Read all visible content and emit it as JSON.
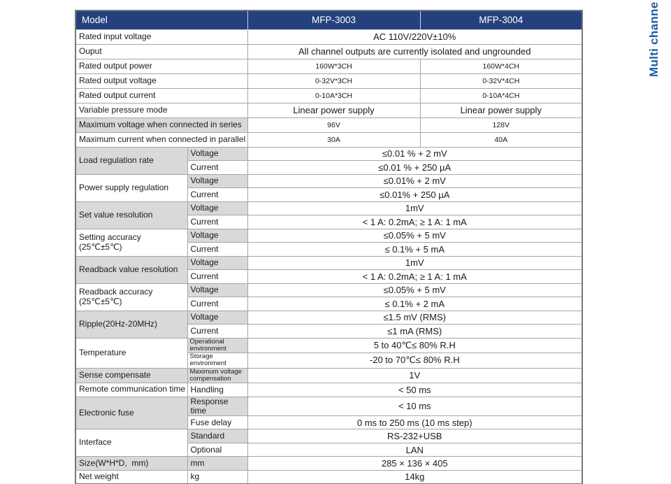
{
  "side_label": "Multi channe",
  "colors": {
    "header_bg": "#24417E",
    "header_text": "#FFFFFF",
    "header_divider": "#CDD3E2",
    "gray_cell": "#D9D9D9",
    "border": "#A6A6A6",
    "outer_border": "#787878",
    "text": "#1A1A1A",
    "side_label": "#1D5BA5"
  },
  "table": {
    "header": {
      "model": "Model",
      "col1": "MFP-3003",
      "col2": "MFP-3004"
    },
    "sections": [
      {
        "label": "Rated input voltage",
        "bg": "white",
        "rows": [
          {
            "sub": null,
            "values": [
              {
                "text": "AC 110V/220V±10%",
                "span": 2,
                "size": "md"
              }
            ]
          }
        ]
      },
      {
        "label": "Ouput",
        "bg": "white",
        "rows": [
          {
            "sub": null,
            "values": [
              {
                "text": "All channel outputs are currently isolated and ungrounded",
                "span": 2,
                "size": "md"
              }
            ]
          }
        ]
      },
      {
        "label": "Rated output power",
        "bg": "white",
        "rows": [
          {
            "sub": null,
            "values": [
              {
                "text": "160W*3CH",
                "span": 1,
                "size": "sm"
              },
              {
                "text": "160W*4CH",
                "span": 1,
                "size": "sm"
              }
            ]
          }
        ]
      },
      {
        "label": "Rated output voltage",
        "bg": "white",
        "rows": [
          {
            "sub": null,
            "values": [
              {
                "text": "0-32V*3CH",
                "span": 1,
                "size": "sm"
              },
              {
                "text": "0-32V*4CH",
                "span": 1,
                "size": "sm"
              }
            ]
          }
        ]
      },
      {
        "label": "Rated output current",
        "bg": "white",
        "rows": [
          {
            "sub": null,
            "values": [
              {
                "text": "0-10A*3CH",
                "span": 1,
                "size": "sm"
              },
              {
                "text": "0-10A*4CH",
                "span": 1,
                "size": "sm"
              }
            ]
          }
        ]
      },
      {
        "label": "Variable pressure mode",
        "bg": "white",
        "rows": [
          {
            "sub": null,
            "values": [
              {
                "text": "Linear power supply",
                "span": 1,
                "size": "md"
              },
              {
                "text": "Linear power supply",
                "span": 1,
                "size": "md"
              }
            ]
          }
        ]
      },
      {
        "label": "Maximum voltage when connected in series",
        "bg": "gray",
        "rows": [
          {
            "sub": null,
            "values": [
              {
                "text": "96V",
                "span": 1,
                "size": "sm"
              },
              {
                "text": "128V",
                "span": 1,
                "size": "sm"
              }
            ]
          }
        ]
      },
      {
        "label": "Maximum current when connected in parallel",
        "bg": "white",
        "rows": [
          {
            "sub": null,
            "values": [
              {
                "text": "30A",
                "span": 1,
                "size": "sm"
              },
              {
                "text": "40A",
                "span": 1,
                "size": "sm"
              }
            ]
          }
        ]
      },
      {
        "label": "Load regulation rate",
        "bg": "gray",
        "rows": [
          {
            "sub": "Voltage",
            "subBg": "gray",
            "values": [
              {
                "text": "≤0.01 % + 2 mV",
                "span": 2,
                "size": "md"
              }
            ]
          },
          {
            "sub": "Current",
            "subBg": "white",
            "values": [
              {
                "text": "≤0.01 % + 250 µA",
                "span": 2,
                "size": "md"
              }
            ]
          }
        ]
      },
      {
        "label": "Power supply regulation",
        "bg": "white",
        "rows": [
          {
            "sub": "Voltage",
            "subBg": "gray",
            "values": [
              {
                "text": "≤0.01% + 2 mV",
                "span": 2,
                "size": "md"
              }
            ]
          },
          {
            "sub": "Current",
            "subBg": "white",
            "values": [
              {
                "text": "≤0.01% + 250 µA",
                "span": 2,
                "size": "md"
              }
            ]
          }
        ]
      },
      {
        "label": "Set value resolution",
        "bg": "gray",
        "rows": [
          {
            "sub": "Voltage",
            "subBg": "gray",
            "values": [
              {
                "text": "1mV",
                "span": 2,
                "size": "md"
              }
            ]
          },
          {
            "sub": "Current",
            "subBg": "white",
            "values": [
              {
                "text": "< 1 A: 0.2mA; ≥ 1 A: 1 mA",
                "span": 2,
                "size": "md"
              }
            ]
          }
        ]
      },
      {
        "label": "Setting accuracy\n(25℃±5℃)",
        "bg": "white",
        "rows": [
          {
            "sub": "Voltage",
            "subBg": "gray",
            "values": [
              {
                "text": "≤0.05% + 5 mV",
                "span": 2,
                "size": "md"
              }
            ]
          },
          {
            "sub": "Current",
            "subBg": "white",
            "values": [
              {
                "text": "≤ 0.1% + 5 mA",
                "span": 2,
                "size": "md"
              }
            ]
          }
        ]
      },
      {
        "label": "Readback value resolution",
        "bg": "gray",
        "rows": [
          {
            "sub": "Voltage",
            "subBg": "gray",
            "values": [
              {
                "text": "1mV",
                "span": 2,
                "size": "md"
              }
            ]
          },
          {
            "sub": "Current",
            "subBg": "white",
            "values": [
              {
                "text": "< 1 A: 0.2mA; ≥ 1 A: 1 mA",
                "span": 2,
                "size": "md"
              }
            ]
          }
        ]
      },
      {
        "label": "Readback accuracy\n(25℃±5℃)",
        "bg": "white",
        "rows": [
          {
            "sub": "Voltage",
            "subBg": "gray",
            "values": [
              {
                "text": "≤0.05% + 5 mV",
                "span": 2,
                "size": "md"
              }
            ]
          },
          {
            "sub": "Current",
            "subBg": "white",
            "values": [
              {
                "text": "≤ 0.1% + 2 mA",
                "span": 2,
                "size": "md"
              }
            ]
          }
        ]
      },
      {
        "label": "Ripple(20Hz-20MHz)",
        "bg": "gray",
        "rows": [
          {
            "sub": "Voltage",
            "subBg": "gray",
            "values": [
              {
                "text": "≤1.5 mV (RMS)",
                "span": 2,
                "size": "md"
              }
            ]
          },
          {
            "sub": "Current",
            "subBg": "white",
            "values": [
              {
                "text": "≤1 mA (RMS)",
                "span": 2,
                "size": "md"
              }
            ]
          }
        ]
      },
      {
        "label": "Temperature",
        "bg": "white",
        "rows": [
          {
            "sub": "Operational\nenvironment",
            "subBg": "gray",
            "subSmall": true,
            "values": [
              {
                "text": "5 to 40℃≤ 80% R.H",
                "span": 2,
                "size": "md"
              }
            ]
          },
          {
            "sub": "Storage\nenvironment",
            "subBg": "white",
            "subSmall": true,
            "values": [
              {
                "text": "-20 to 70℃≤ 80% R.H",
                "span": 2,
                "size": "md"
              }
            ]
          }
        ]
      },
      {
        "label": "Sense compensate",
        "bg": "gray",
        "rows": [
          {
            "sub": "Maximum voltage\ncompensation",
            "subBg": "gray",
            "subSmall": true,
            "values": [
              {
                "text": "1V",
                "span": 2,
                "size": "md"
              }
            ]
          }
        ]
      },
      {
        "label": "Remote communication time",
        "bg": "white",
        "rows": [
          {
            "sub": "Handling",
            "subBg": "white",
            "values": [
              {
                "text": "< 50 ms",
                "span": 2,
                "size": "md"
              }
            ]
          }
        ]
      },
      {
        "label": "Electronic fuse",
        "bg": "gray",
        "rows": [
          {
            "sub": "Response time",
            "subBg": "gray",
            "values": [
              {
                "text": "< 10 ms",
                "span": 2,
                "size": "md"
              }
            ]
          },
          {
            "sub": "Fuse delay",
            "subBg": "white",
            "values": [
              {
                "text": "0 ms to 250 ms (10 ms step)",
                "span": 2,
                "size": "md"
              }
            ]
          }
        ]
      },
      {
        "label": "Interface",
        "bg": "white",
        "rows": [
          {
            "sub": "Standard",
            "subBg": "gray",
            "values": [
              {
                "text": "RS-232+USB",
                "span": 2,
                "size": "md"
              }
            ]
          },
          {
            "sub": "Optional",
            "subBg": "white",
            "values": [
              {
                "text": "LAN",
                "span": 2,
                "size": "md"
              }
            ]
          }
        ]
      },
      {
        "label": "Size(W*H*D,  mm)",
        "bg": "gray",
        "rows": [
          {
            "sub": "mm",
            "subBg": "gray",
            "values": [
              {
                "text": "285 × 136 × 405",
                "span": 2,
                "size": "md"
              }
            ]
          }
        ]
      },
      {
        "label": "Net weight",
        "bg": "white",
        "rows": [
          {
            "sub": "kg",
            "subBg": "white",
            "values": [
              {
                "text": "14kg",
                "span": 2,
                "size": "md"
              }
            ]
          }
        ]
      }
    ]
  }
}
